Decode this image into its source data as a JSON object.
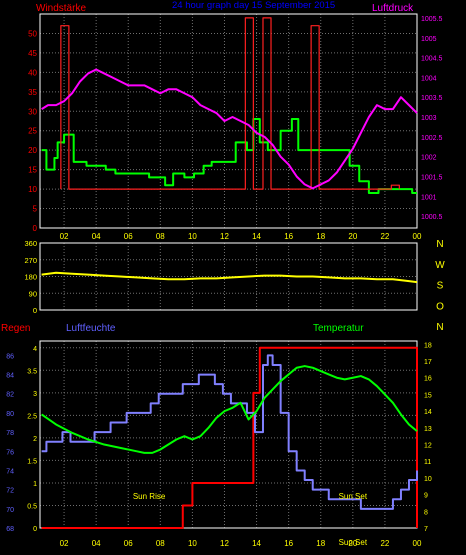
{
  "header": {
    "title": "24 hour graph day  15 September 2015",
    "left_label": "Windstärke",
    "right_label": "Luftdruck"
  },
  "colors": {
    "background": "#000000",
    "frame": "#ffffff",
    "grid": "#6f6f6f",
    "wind": "#00ff00",
    "gust": "#ff2020",
    "pressure": "#ff00ff",
    "direction": "#ffff00",
    "rain": "#ff0000",
    "humidity": "#8080ff",
    "temperature": "#00ff00",
    "tick_text": "#ffff00",
    "title": "#0000ff",
    "label_red": "#ff0000",
    "label_blue": "#6060ff",
    "label_green": "#00ff00",
    "label_magenta": "#ff00ff"
  },
  "chart_data": [
    {
      "id": "wind_pressure",
      "type": "line",
      "title": "24 hour graph day  15 September 2015",
      "x_ticks": [
        "02",
        "04",
        "06",
        "08",
        "10",
        "12",
        "14",
        "16",
        "18",
        "20",
        "22",
        "00"
      ],
      "x_range": [
        0.5,
        24
      ],
      "left_axis": {
        "label": "Windstärke",
        "ylim": [
          0,
          55
        ],
        "ticks": [
          0,
          5,
          10,
          15,
          20,
          25,
          30,
          35,
          40,
          45,
          50
        ]
      },
      "right_axis": {
        "label": "Luftdruck",
        "ylim": [
          1000.2,
          1005.6
        ],
        "ticks": [
          "1000.5",
          "1001",
          "1001.5",
          "1002",
          "1002.5",
          "1003",
          "1003.5",
          "1004",
          "1004.5",
          "1005",
          "1005.5"
        ]
      },
      "series": [
        {
          "kind": "wind",
          "axis": "left",
          "x": [
            0.6,
            0.9,
            1.4,
            1.6,
            2.0,
            2.4,
            2.6,
            3.0,
            3.4,
            4.0,
            4.6,
            5.2,
            5.9,
            6.6,
            7.3,
            7.8,
            8.3,
            8.8,
            9.5,
            10.1,
            10.7,
            11.2,
            11.6,
            12.3,
            12.7,
            13.4,
            13.8,
            14.2,
            14.7,
            15.1,
            15.5,
            16.2,
            16.6,
            17.1,
            17.6,
            18.1,
            18.6,
            19.3,
            19.8,
            20.4,
            21.0,
            21.6,
            22.2,
            22.7,
            23.2,
            23.7,
            24.0
          ],
          "y": [
            20,
            15,
            18,
            22,
            24,
            24,
            17,
            17,
            16,
            16,
            15,
            14,
            14,
            14,
            13,
            13,
            11,
            14,
            13,
            14,
            16,
            17,
            17,
            17,
            22,
            20,
            28,
            22,
            20,
            20,
            25,
            28,
            20,
            20,
            20,
            20,
            20,
            20,
            16,
            12,
            9,
            10,
            10,
            10,
            10,
            9,
            9
          ]
        },
        {
          "kind": "gust",
          "axis": "left",
          "x": [
            1.8,
            1.8,
            2.3,
            2.3,
            13.3,
            13.3,
            13.8,
            13.8,
            14.4,
            14.4,
            14.9,
            14.9,
            17.4,
            17.4,
            17.9,
            17.9,
            22.4,
            22.4,
            22.9,
            22.9
          ],
          "y": [
            10,
            52,
            52,
            10,
            10,
            54,
            54,
            10,
            10,
            54,
            54,
            10,
            10,
            52,
            52,
            10,
            10,
            11,
            11,
            10
          ]
        },
        {
          "kind": "pressure",
          "axis": "right",
          "x": [
            0.6,
            1.0,
            1.5,
            2.0,
            2.5,
            3.0,
            3.5,
            4.0,
            4.5,
            5.0,
            5.5,
            6.0,
            6.5,
            7.0,
            7.5,
            8.0,
            8.5,
            9.0,
            9.5,
            10.0,
            10.5,
            11.0,
            11.5,
            12.0,
            12.5,
            13.0,
            13.5,
            14.0,
            14.5,
            15.0,
            15.5,
            16.0,
            16.5,
            17.0,
            17.5,
            18.0,
            18.5,
            19.0,
            19.5,
            20.0,
            20.5,
            21.0,
            21.5,
            22.0,
            22.5,
            23.0,
            23.5,
            24.0
          ],
          "y": [
            1003.2,
            1003.3,
            1003.3,
            1003.4,
            1003.6,
            1003.9,
            1004.1,
            1004.2,
            1004.1,
            1004.0,
            1003.9,
            1003.8,
            1003.8,
            1003.8,
            1003.7,
            1003.6,
            1003.7,
            1003.7,
            1003.6,
            1003.5,
            1003.3,
            1003.2,
            1003.1,
            1002.9,
            1003.0,
            1002.9,
            1002.8,
            1002.6,
            1002.5,
            1002.3,
            1002.0,
            1001.8,
            1001.5,
            1001.3,
            1001.2,
            1001.3,
            1001.4,
            1001.6,
            1001.9,
            1002.2,
            1002.6,
            1003.0,
            1003.3,
            1003.2,
            1003.2,
            1003.5,
            1003.3,
            1003.1
          ]
        }
      ]
    },
    {
      "id": "wind_direction",
      "type": "line",
      "ylim": [
        0,
        360
      ],
      "y_ticks": [
        0,
        90,
        180,
        270,
        360
      ],
      "compass_labels": [
        "N",
        "W",
        "S",
        "O",
        "N"
      ],
      "series": [
        {
          "kind": "direction",
          "x": [
            0.6,
            1.5,
            2.5,
            3.5,
            4.5,
            5.5,
            6.5,
            7.5,
            8.5,
            9.5,
            10.5,
            11.5,
            12.5,
            13.5,
            14.5,
            15.5,
            16.5,
            17.5,
            18.5,
            19.5,
            20.5,
            21.5,
            22.5,
            23.5,
            24.0
          ],
          "y": [
            190,
            200,
            195,
            190,
            185,
            180,
            175,
            170,
            165,
            165,
            170,
            170,
            175,
            180,
            185,
            185,
            180,
            180,
            175,
            170,
            170,
            165,
            165,
            155,
            150
          ]
        }
      ]
    },
    {
      "id": "rain_humidity_temperature",
      "type": "line",
      "x_ticks": [
        "02",
        "04",
        "06",
        "08",
        "10",
        "12",
        "14",
        "16",
        "18",
        "20",
        "22",
        "00"
      ],
      "rain_axis": {
        "label": "Regen",
        "ylim": [
          0,
          4.15
        ],
        "ticks": [
          "0",
          "0.5",
          "1",
          "1.5",
          "2",
          "2.5",
          "3",
          "3.5",
          "4"
        ]
      },
      "humidity_axis": {
        "label": "Luftfeuchte",
        "ylim": [
          68,
          87.5
        ],
        "ticks": [
          68,
          70,
          72,
          74,
          76,
          78,
          80,
          82,
          84,
          86
        ]
      },
      "temperature_axis": {
        "label": "Temperatur",
        "ylim": [
          7,
          18.2
        ],
        "ticks": [
          7,
          8,
          9,
          10,
          11,
          12,
          13,
          14,
          15,
          16,
          17,
          18
        ]
      },
      "annotations": [
        "Sun Rise",
        "Sun Set",
        "Sun Set"
      ],
      "series": [
        {
          "kind": "rain",
          "axis": "rain",
          "x": [
            0.6,
            9.4,
            9.4,
            10.0,
            10.0,
            13.8,
            13.8,
            14.2,
            14.2,
            24.0,
            24.0
          ],
          "y": [
            0,
            0,
            0.5,
            0.5,
            1.0,
            1.0,
            3.0,
            3.0,
            4.0,
            4.0,
            0
          ]
        },
        {
          "kind": "humidity",
          "axis": "humidity",
          "x": [
            0.6,
            0.9,
            1.4,
            1.9,
            2.4,
            2.9,
            3.4,
            3.9,
            4.4,
            4.9,
            5.4,
            5.9,
            6.4,
            6.9,
            7.4,
            7.9,
            8.4,
            8.9,
            9.4,
            9.9,
            10.4,
            10.9,
            11.4,
            11.9,
            12.4,
            12.9,
            13.4,
            13.9,
            14.4,
            14.7,
            15.0,
            15.5,
            16.0,
            16.5,
            17.0,
            17.5,
            18.0,
            18.5,
            19.0,
            19.5,
            20.0,
            20.5,
            21.0,
            21.5,
            22.0,
            22.5,
            23.0,
            23.5,
            24.0
          ],
          "y": [
            76,
            77,
            77,
            78,
            77,
            77,
            77,
            78,
            78,
            79,
            79,
            80,
            80,
            80,
            81,
            82,
            82,
            82,
            83,
            83,
            84,
            84,
            83,
            82,
            81,
            81,
            80,
            78,
            85,
            86,
            85,
            80,
            76,
            74,
            73,
            72,
            72,
            71,
            71,
            71,
            71,
            70,
            70,
            70,
            70,
            71,
            72,
            73,
            74
          ]
        },
        {
          "kind": "temperature",
          "axis": "temperature",
          "x": [
            0.6,
            1.5,
            2.5,
            3.5,
            4.5,
            5.5,
            6.5,
            7.0,
            7.5,
            8.0,
            8.5,
            9.0,
            9.5,
            10.0,
            10.5,
            11.0,
            11.5,
            12.0,
            12.5,
            13.0,
            13.5,
            14.0,
            14.5,
            15.0,
            15.5,
            16.0,
            16.5,
            17.0,
            17.5,
            18.0,
            18.5,
            19.0,
            19.5,
            20.0,
            20.5,
            21.0,
            21.5,
            22.0,
            22.5,
            23.0,
            23.5,
            24.0
          ],
          "y": [
            13.8,
            13.2,
            12.7,
            12.3,
            12.0,
            11.8,
            11.6,
            11.5,
            11.5,
            11.7,
            12.0,
            12.3,
            12.5,
            12.3,
            12.5,
            13.0,
            13.6,
            14.0,
            14.2,
            14.5,
            13.5,
            14.0,
            14.8,
            15.3,
            15.8,
            16.2,
            16.6,
            16.7,
            16.6,
            16.4,
            16.2,
            16.0,
            15.9,
            16.0,
            16.1,
            15.9,
            15.5,
            15.0,
            14.5,
            13.8,
            13.2,
            12.8
          ]
        }
      ]
    }
  ]
}
